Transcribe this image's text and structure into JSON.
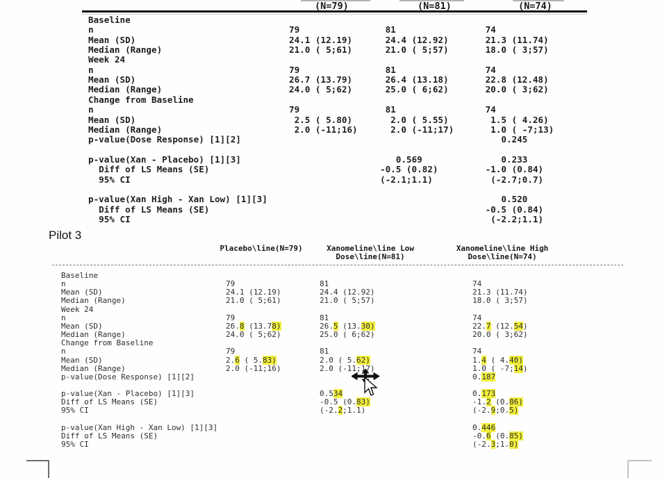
{
  "pilot_label": "Pilot 3",
  "colors": {
    "highlight": "#f1ee3b",
    "text_dark": "#1d1d1d",
    "text_pilot": "#2d2d2d"
  },
  "reference_table": {
    "header": {
      "c1": "(N=79)",
      "c2": "(N=81)",
      "c3": "(N=74)"
    },
    "rows": [
      {
        "label": "Baseline"
      },
      {
        "label": "n",
        "c1": "79",
        "c2": " 81",
        "c3": " 74"
      },
      {
        "label": "Mean (SD)",
        "c1": "24.1 (12.19)",
        "c2": " 24.4 (12.92)",
        "c3": " 21.3 (11.74)"
      },
      {
        "label": "Median (Range)",
        "c1": "21.0 ( 5;61)",
        "c2": " 21.0 ( 5;57)",
        "c3": " 18.0 ( 3;57)"
      },
      {
        "label": "Week 24"
      },
      {
        "label": "n",
        "c1": "79",
        "c2": " 81",
        "c3": " 74"
      },
      {
        "label": "Mean (SD)",
        "c1": "26.7 (13.79)",
        "c2": " 26.4 (13.18)",
        "c3": " 22.8 (12.48)"
      },
      {
        "label": "Median (Range)",
        "c1": "24.0 ( 5;62)",
        "c2": " 25.0 ( 6;62)",
        "c3": " 20.0 ( 3;62)"
      },
      {
        "label": "Change from Baseline"
      },
      {
        "label": "n",
        "c1": "79",
        "c2": " 81",
        "c3": " 74"
      },
      {
        "label": "Mean (SD)",
        "c1": " 2.5 ( 5.80)",
        "c2": "  2.0 ( 5.55)",
        "c3": "  1.5 ( 4.26)"
      },
      {
        "label": "Median (Range)",
        "c1": " 2.0 (-11;16)",
        "c2": "  2.0 (-11;17)",
        "c3": "  1.0 ( -7;13)"
      },
      {
        "label": "p-value(Dose Response) [1][2]",
        "c3": "    0.245"
      },
      {
        "label": ""
      },
      {
        "label": "p-value(Xan - Placebo) [1][3]",
        "c2": "   0.569",
        "c3": "    0.233"
      },
      {
        "label": "  Diff of LS Means (SE)",
        "c2": "-0.5 (0.82)",
        "c3": " -1.0 (0.84)"
      },
      {
        "label": "  95% CI",
        "c2": "(-2.1;1.1)",
        "c3": "  (-2.7;0.7)"
      },
      {
        "label": ""
      },
      {
        "label": "p-value(Xan High - Xan Low) [1][3]",
        "c3": "    0.520"
      },
      {
        "label": "  Diff of LS Means (SE)",
        "c3": " -0.5 (0.84)"
      },
      {
        "label": "  95% CI",
        "c3": "  (-2.2;1.1)"
      }
    ]
  },
  "pilot_table": {
    "headers": [
      {
        "lines": [
          "Placebo\\line(N=79)"
        ]
      },
      {
        "lines": [
          "Xanomeline\\line Low",
          "Dose\\line(N=81)"
        ]
      },
      {
        "lines": [
          "Xanomeline\\line High",
          "Dose\\line(N=74)"
        ]
      }
    ],
    "rows": [
      {
        "label": "Baseline"
      },
      {
        "label": "n",
        "c1": [
          [
            "79"
          ]
        ],
        "c2": [
          [
            "81"
          ]
        ],
        "c3": [
          [
            "74"
          ]
        ]
      },
      {
        "label": "Mean (SD)",
        "c1": [
          [
            "24.1 (12.19)"
          ]
        ],
        "c2": [
          [
            "24.4 (12.92)"
          ]
        ],
        "c3": [
          [
            "21.3 (11.74)"
          ]
        ]
      },
      {
        "label": "Median (Range)",
        "c1": [
          [
            "21.0 ( 5;61)"
          ]
        ],
        "c2": [
          [
            "21.0 ( 5;57)"
          ]
        ],
        "c3": [
          [
            "18.0 ( 3;57)"
          ]
        ]
      },
      {
        "label": "Week 24"
      },
      {
        "label": "n",
        "c1": [
          [
            "79"
          ]
        ],
        "c2": [
          [
            "81"
          ]
        ],
        "c3": [
          [
            "74"
          ]
        ]
      },
      {
        "label": "Mean (SD)",
        "c1": [
          [
            "26."
          ],
          [
            "8",
            1
          ],
          [
            " (13.7"
          ],
          [
            "8)",
            1
          ]
        ],
        "c2": [
          [
            "26."
          ],
          [
            "5",
            1
          ],
          [
            " (13."
          ],
          [
            "30)",
            1
          ]
        ],
        "c3": [
          [
            "22."
          ],
          [
            "7",
            1
          ],
          [
            " (12."
          ],
          [
            "54",
            1
          ],
          [
            ")"
          ]
        ]
      },
      {
        "label": "Median (Range)",
        "c1": [
          [
            "24.0 ( 5;62)"
          ]
        ],
        "c2": [
          [
            "25.0 ( 6;62)"
          ]
        ],
        "c3": [
          [
            "20.0 ( 3;62)"
          ]
        ]
      },
      {
        "label": "Change from Baseline"
      },
      {
        "label": "n",
        "c1": [
          [
            "79"
          ]
        ],
        "c2": [
          [
            "81"
          ]
        ],
        "c3": [
          [
            "74"
          ]
        ]
      },
      {
        "label": "Mean (SD)",
        "c1": [
          [
            "2."
          ],
          [
            "6",
            1
          ],
          [
            " ( 5."
          ],
          [
            "83)",
            1
          ]
        ],
        "c2": [
          [
            "2.0 ( 5."
          ],
          [
            "62)",
            1
          ]
        ],
        "c3": [
          [
            "1."
          ],
          [
            "4",
            1
          ],
          [
            " ( 4."
          ],
          [
            "40)",
            1
          ]
        ]
      },
      {
        "label": "Median (Range)",
        "c1": [
          [
            "2.0 (-11;16)"
          ]
        ],
        "c2": [
          [
            "2.0 (-11;17)"
          ]
        ],
        "c3": [
          [
            "1.0 ( -7;"
          ],
          [
            "14",
            1
          ],
          [
            ")"
          ]
        ]
      },
      {
        "label": "p-value(Dose Response) [1][2]",
        "c3": [
          [
            "0."
          ],
          [
            "187",
            1
          ]
        ]
      },
      {
        "label": ""
      },
      {
        "label": "p-value(Xan - Placebo) [1][3]",
        "c2": [
          [
            "0.5"
          ],
          [
            "34",
            1
          ]
        ],
        "c3": [
          [
            "0."
          ],
          [
            "173",
            1
          ]
        ]
      },
      {
        "label": "Diff of LS Means (SE)",
        "c2": [
          [
            "-0.5 (0."
          ],
          [
            "83)",
            1
          ]
        ],
        "c3": [
          [
            "-1."
          ],
          [
            "2",
            1
          ],
          [
            " (0."
          ],
          [
            "86)",
            1
          ]
        ]
      },
      {
        "label": "95% CI",
        "c2": [
          [
            "(-2."
          ],
          [
            "2",
            1
          ],
          [
            ";1.1)"
          ]
        ],
        "c3": [
          [
            "(-2."
          ],
          [
            "9",
            1
          ],
          [
            ";0."
          ],
          [
            "5)",
            1
          ]
        ]
      },
      {
        "label": ""
      },
      {
        "label": "p-value(Xan High - Xan Low) [1][3]",
        "c3": [
          [
            "0."
          ],
          [
            "446",
            1
          ]
        ]
      },
      {
        "label": "Diff of LS Means (SE)",
        "c3": [
          [
            "-0."
          ],
          [
            "6",
            1
          ],
          [
            " (0."
          ],
          [
            "85)",
            1
          ]
        ]
      },
      {
        "label": "95% CI",
        "c3": [
          [
            "(-2."
          ],
          [
            "3",
            1
          ],
          [
            ";1."
          ],
          [
            "0)",
            1
          ]
        ]
      }
    ]
  }
}
